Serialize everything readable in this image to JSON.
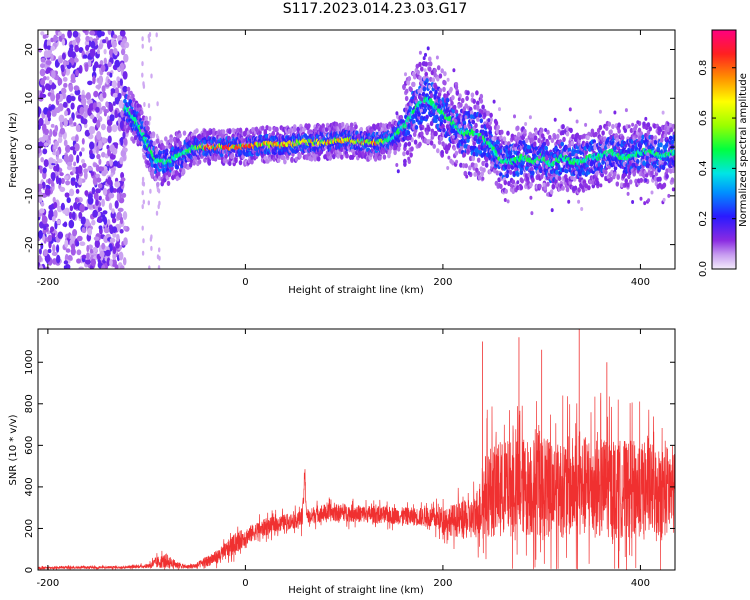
{
  "title": "S117.2023.014.23.03.G17",
  "colors": {
    "snr_line": "#f03030",
    "axis": "#000000",
    "colormap": [
      "#e6ccf5",
      "#9a3cff",
      "#1a1aff",
      "#00ccff",
      "#00ff40",
      "#e6ff00",
      "#ff8000",
      "#ff0060"
    ]
  },
  "chart_data": [
    {
      "type": "heatmap",
      "title": "",
      "xlabel": "Height of straight line (km)",
      "ylabel": "Frequency (Hz)",
      "xlim": [
        -210,
        435
      ],
      "ylim": [
        -25,
        24
      ],
      "x_ticks": [
        -200,
        0,
        200,
        400
      ],
      "y_ticks": [
        20,
        10,
        0,
        -10,
        -20
      ],
      "colorbar": {
        "label": "Normalized spectral amplitude",
        "range": [
          0.0,
          0.95
        ],
        "ticks": [
          0.0,
          0.2,
          0.4,
          0.6,
          0.8
        ]
      },
      "ridge": {
        "x": [
          -120,
          -110,
          -100,
          -90,
          -80,
          -70,
          -60,
          -50,
          -40,
          -20,
          0,
          20,
          40,
          60,
          80,
          100,
          120,
          140,
          150,
          160,
          170,
          180,
          190,
          200,
          210,
          220,
          230,
          240,
          250,
          260,
          270,
          280,
          290,
          300,
          310,
          320,
          330,
          340,
          350,
          360,
          370,
          380,
          390,
          400,
          410,
          420,
          435
        ],
        "y": [
          8,
          5,
          1,
          -3,
          -3,
          -2,
          -1,
          0,
          0,
          0,
          0,
          0.5,
          0.5,
          1,
          1,
          1.5,
          1,
          1,
          2,
          4,
          7,
          10,
          9,
          7,
          5,
          3,
          3,
          2,
          0,
          -3,
          -3,
          -2,
          -3,
          -2,
          -4,
          -2,
          -3,
          -3,
          -2,
          -2,
          -1,
          -2,
          -2,
          -1,
          -1,
          -2,
          -1
        ]
      },
      "noise_region_x": [
        -210,
        -120
      ]
    },
    {
      "type": "line",
      "title": "",
      "xlabel": "Height of straight line (km)",
      "ylabel": "SNR (10 * v/v)",
      "xlim": [
        -210,
        435
      ],
      "ylim": [
        0,
        1160
      ],
      "x_ticks": [
        -200,
        0,
        200,
        400
      ],
      "y_ticks": [
        0,
        200,
        400,
        600,
        800,
        1000
      ],
      "series": [
        {
          "x": [
            -210,
            -180,
            -150,
            -120,
            -100,
            -90,
            -80,
            -70,
            -60,
            -50,
            -40,
            -30,
            -20,
            -10,
            0,
            10,
            20,
            30,
            40,
            50,
            55,
            58,
            60,
            62,
            65,
            70,
            80,
            100,
            120,
            140,
            160,
            180,
            190,
            200,
            210,
            220,
            230,
            238,
            245,
            260,
            280,
            300,
            320,
            340,
            360,
            380,
            400,
            420,
            435
          ],
          "center": [
            10,
            12,
            12,
            14,
            18,
            35,
            45,
            25,
            15,
            20,
            40,
            60,
            90,
            130,
            160,
            185,
            205,
            220,
            230,
            240,
            245,
            260,
            460,
            270,
            250,
            270,
            275,
            275,
            270,
            265,
            260,
            255,
            250,
            245,
            240,
            240,
            245,
            300,
            380,
            390,
            400,
            400,
            400,
            400,
            400,
            390,
            390,
            380,
            380
          ],
          "amplitude": [
            8,
            8,
            8,
            8,
            12,
            40,
            50,
            25,
            12,
            20,
            35,
            45,
            60,
            70,
            60,
            60,
            60,
            55,
            55,
            55,
            55,
            80,
            60,
            55,
            55,
            60,
            60,
            60,
            60,
            60,
            60,
            65,
            75,
            90,
            110,
            130,
            140,
            200,
            320,
            330,
            340,
            350,
            350,
            350,
            350,
            340,
            330,
            320,
            320
          ]
        }
      ],
      "annotations": [
        {
          "x": 240,
          "y": 1100
        },
        {
          "x": 277,
          "y": 1120
        },
        {
          "x": 338,
          "y": 1160
        },
        {
          "x": 300,
          "y": 1060
        },
        {
          "x": 366,
          "y": 1000
        }
      ]
    }
  ]
}
